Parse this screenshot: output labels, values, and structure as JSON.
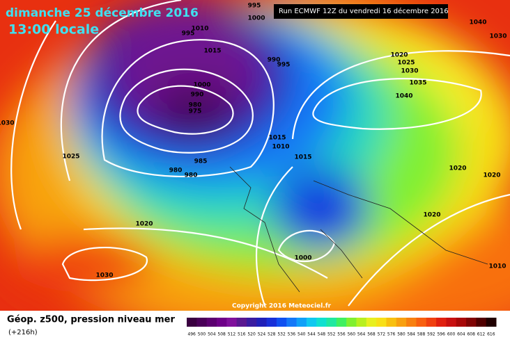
{
  "header": {
    "date": "dimanche 25 décembre 2016",
    "time": "13:00 locale",
    "run": "Run ECMWF 12Z du vendredi 16 décembre 2016"
  },
  "map": {
    "isobar_labels": [
      "995",
      "1000",
      "1010",
      "1015",
      "990",
      "995",
      "995",
      "1000",
      "990",
      "980",
      "975",
      "985",
      "980",
      "980",
      "1030",
      "1025",
      "1020",
      "1030",
      "1015",
      "1010",
      "1015",
      "1020",
      "1025",
      "1030",
      "1035",
      "1040",
      "1040",
      "1030",
      "1020",
      "1020",
      "1020",
      "1000",
      "1010"
    ],
    "copyright": "Copyright 2016 Meteociel.fr"
  },
  "footer": {
    "title": "Géop. z500, pression niveau mer",
    "lead": "(+216h)",
    "legend": [
      {
        "label": "496",
        "color": "#3a0040"
      },
      {
        "label": "500",
        "color": "#4a0058"
      },
      {
        "label": "504",
        "color": "#5c0070"
      },
      {
        "label": "508",
        "color": "#6e0088"
      },
      {
        "label": "512",
        "color": "#80109c"
      },
      {
        "label": "516",
        "color": "#5a1890"
      },
      {
        "label": "520",
        "color": "#3a1ca0"
      },
      {
        "label": "524",
        "color": "#2020b8"
      },
      {
        "label": "528",
        "color": "#1830d8"
      },
      {
        "label": "532",
        "color": "#1050f0"
      },
      {
        "label": "536",
        "color": "#1478f8"
      },
      {
        "label": "540",
        "color": "#10a0f8"
      },
      {
        "label": "544",
        "color": "#10c8f0"
      },
      {
        "label": "548",
        "color": "#10e0d0"
      },
      {
        "label": "552",
        "color": "#20e8a0"
      },
      {
        "label": "556",
        "color": "#40f060"
      },
      {
        "label": "560",
        "color": "#80f030"
      },
      {
        "label": "564",
        "color": "#b8f020"
      },
      {
        "label": "568",
        "color": "#e8f020"
      },
      {
        "label": "572",
        "color": "#f8e018"
      },
      {
        "label": "576",
        "color": "#f8c010"
      },
      {
        "label": "580",
        "color": "#f8a010"
      },
      {
        "label": "584",
        "color": "#f88010"
      },
      {
        "label": "588",
        "color": "#f86010"
      },
      {
        "label": "592",
        "color": "#f04010"
      },
      {
        "label": "596",
        "color": "#e02010"
      },
      {
        "label": "600",
        "color": "#c81010"
      },
      {
        "label": "604",
        "color": "#a80808"
      },
      {
        "label": "608",
        "color": "#800404"
      },
      {
        "label": "612",
        "color": "#500000"
      },
      {
        "label": "616",
        "color": "#200000"
      }
    ]
  }
}
